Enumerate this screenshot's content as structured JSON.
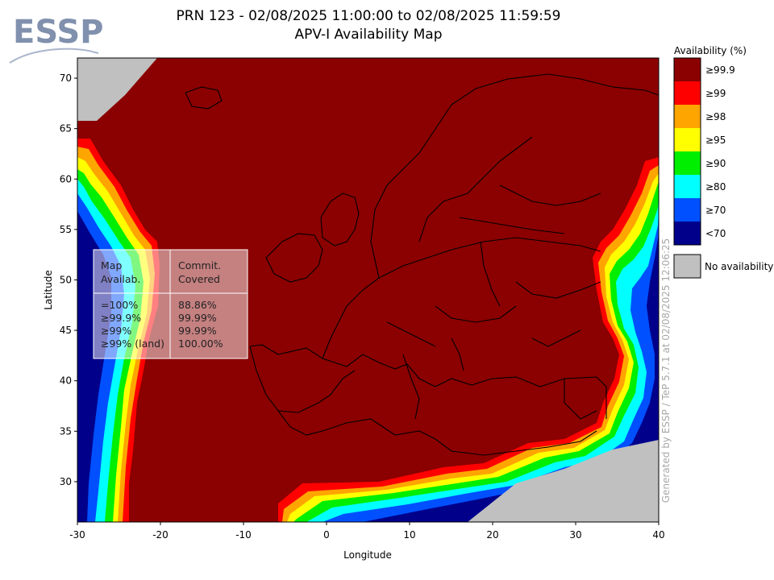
{
  "chart_data": {
    "type": "heatmap",
    "title": "PRN 123 - 02/08/2025 11:00:00 to 02/08/2025 11:59:59",
    "subtitle": "APV-I Availability Map",
    "xlabel": "Longitude",
    "ylabel": "Latitude",
    "xlim": [
      -30,
      40
    ],
    "ylim": [
      26,
      72
    ],
    "xticks": [
      -30,
      -20,
      -10,
      0,
      10,
      20,
      30,
      40
    ],
    "yticks": [
      30,
      35,
      40,
      45,
      50,
      55,
      60,
      65,
      70
    ],
    "grid": false,
    "legend": {
      "title": "Availability (%)",
      "position": "right",
      "levels": [
        {
          "label": "≥99.9",
          "color": "#8b0000"
        },
        {
          "label": "≥99",
          "color": "#ff0000"
        },
        {
          "label": "≥98",
          "color": "#ffa500"
        },
        {
          "label": "≥95",
          "color": "#ffff00"
        },
        {
          "label": "≥90",
          "color": "#00ee00"
        },
        {
          "label": "≥80",
          "color": "#00ffff"
        },
        {
          "label": "≥70",
          "color": "#0050ff"
        },
        {
          "label": "<70",
          "color": "#00008b"
        }
      ],
      "no_data": {
        "label": "No availability",
        "color": "#c0c0c0"
      }
    },
    "stats_table": {
      "col1_header": [
        "Map",
        "Availab."
      ],
      "col2_header": [
        "Commit.",
        "Covered"
      ],
      "rows": [
        {
          "level": "=100%",
          "covered": "88.86%"
        },
        {
          "level": "≥99.9%",
          "covered": "99.99%"
        },
        {
          "level": "≥99%",
          "covered": "99.99%"
        },
        {
          "level": "≥99% (land)",
          "covered": "100.00%"
        }
      ]
    },
    "credit": "Generated by ESSP / TeP 5.7.1 at 02/08/2025 12:06:25"
  },
  "logo_text": "ESSP"
}
